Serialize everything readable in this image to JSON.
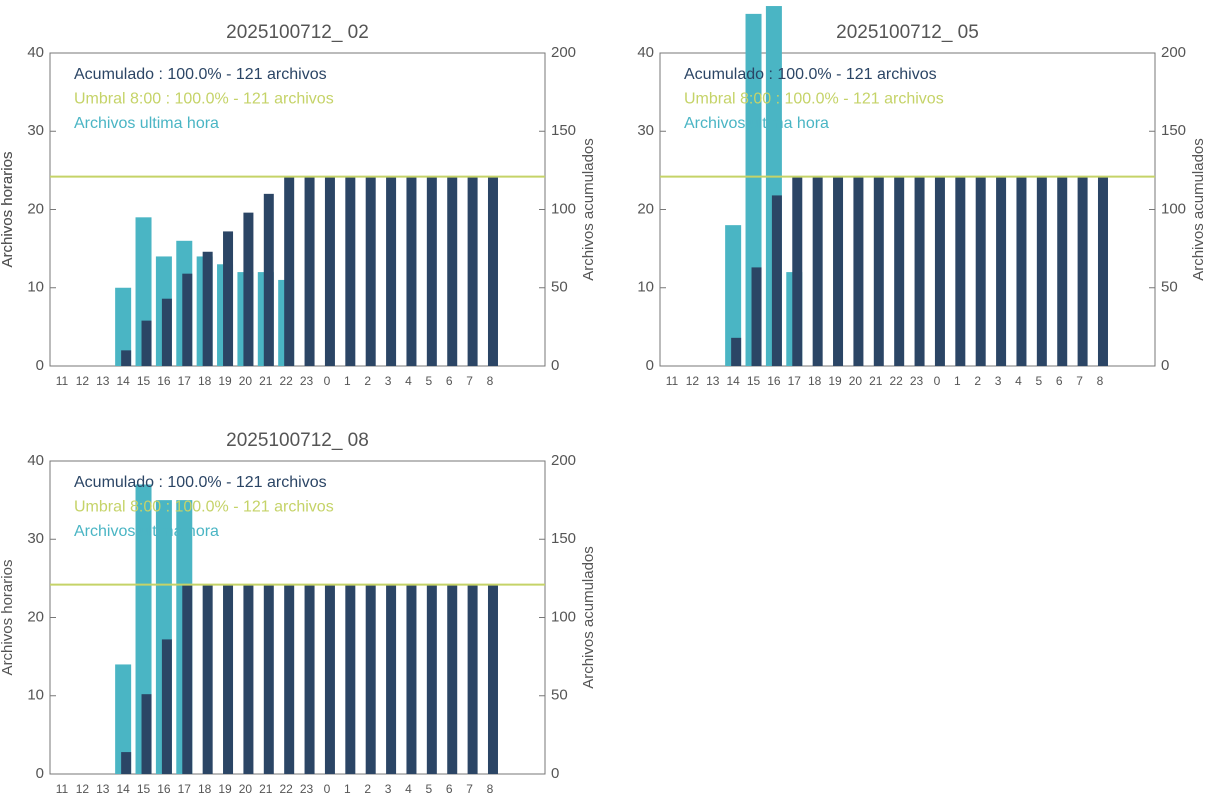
{
  "chart_data": [
    {
      "type": "bar",
      "title": "2025100712_ 02",
      "ylabel": "Archivos horarios",
      "y2label": "Archivos acumulados",
      "categories": [
        "11",
        "12",
        "13",
        "14",
        "15",
        "16",
        "17",
        "18",
        "19",
        "20",
        "21",
        "22",
        "23",
        "0",
        "1",
        "2",
        "3",
        "4",
        "5",
        "6",
        "7",
        "8"
      ],
      "series": [
        {
          "name": "Archivos ultima hora",
          "color": "#4ab5c4",
          "values": [
            0,
            0,
            0,
            10,
            19,
            14,
            16,
            14,
            13,
            12,
            12,
            11,
            0,
            0,
            0,
            0,
            0,
            0,
            0,
            0,
            0,
            0
          ]
        },
        {
          "name": "Acumulado : 100.0% - 121 archivos",
          "color": "#2b4565",
          "axis": "y2",
          "values": [
            0,
            0,
            0,
            10,
            29,
            43,
            59,
            73,
            86,
            98,
            110,
            121,
            121,
            121,
            121,
            121,
            121,
            121,
            121,
            121,
            121,
            121
          ]
        }
      ],
      "threshold": {
        "name": "Umbral 8:00 : 100.0% - 121 archivos",
        "value": 121,
        "axis": "y2",
        "color": "#c5d368"
      },
      "ylim": [
        0,
        40
      ],
      "yticks": [
        0,
        10,
        20,
        30,
        40
      ],
      "y2lim": [
        0,
        200
      ],
      "y2ticks": [
        0,
        50,
        100,
        150,
        200
      ]
    },
    {
      "type": "bar",
      "title": "2025100712_ 05",
      "ylabel": "Archivos horarios",
      "y2label": "Archivos acumulados",
      "categories": [
        "11",
        "12",
        "13",
        "14",
        "15",
        "16",
        "17",
        "18",
        "19",
        "20",
        "21",
        "22",
        "23",
        "0",
        "1",
        "2",
        "3",
        "4",
        "5",
        "6",
        "7",
        "8"
      ],
      "series": [
        {
          "name": "Archivos ultima hora",
          "color": "#4ab5c4",
          "values": [
            0,
            0,
            0,
            18,
            45,
            46,
            12,
            0,
            0,
            0,
            0,
            0,
            0,
            0,
            0,
            0,
            0,
            0,
            0,
            0,
            0,
            0
          ]
        },
        {
          "name": "Acumulado : 100.0% - 121 archivos",
          "color": "#2b4565",
          "axis": "y2",
          "values": [
            0,
            0,
            0,
            18,
            63,
            109,
            121,
            121,
            121,
            121,
            121,
            121,
            121,
            121,
            121,
            121,
            121,
            121,
            121,
            121,
            121,
            121
          ]
        }
      ],
      "threshold": {
        "name": "Umbral 8:00 : 100.0% - 121 archivos",
        "value": 121,
        "axis": "y2",
        "color": "#c5d368"
      },
      "ylim": [
        0,
        40
      ],
      "yticks": [
        0,
        10,
        20,
        30,
        40
      ],
      "y2lim": [
        0,
        200
      ],
      "y2ticks": [
        0,
        50,
        100,
        150,
        200
      ]
    },
    {
      "type": "bar",
      "title": "2025100712_ 08",
      "ylabel": "Archivos horarios",
      "y2label": "Archivos acumulados",
      "categories": [
        "11",
        "12",
        "13",
        "14",
        "15",
        "16",
        "17",
        "18",
        "19",
        "20",
        "21",
        "22",
        "23",
        "0",
        "1",
        "2",
        "3",
        "4",
        "5",
        "6",
        "7",
        "8"
      ],
      "series": [
        {
          "name": "Archivos ultima hora",
          "color": "#4ab5c4",
          "values": [
            0,
            0,
            0,
            14,
            37,
            35,
            35,
            0,
            0,
            0,
            0,
            0,
            0,
            0,
            0,
            0,
            0,
            0,
            0,
            0,
            0,
            0
          ]
        },
        {
          "name": "Acumulado : 100.0% - 121 archivos",
          "color": "#2b4565",
          "axis": "y2",
          "values": [
            0,
            0,
            0,
            14,
            51,
            86,
            121,
            121,
            121,
            121,
            121,
            121,
            121,
            121,
            121,
            121,
            121,
            121,
            121,
            121,
            121,
            121
          ]
        }
      ],
      "threshold": {
        "name": "Umbral 8:00 : 100.0% - 121 archivos",
        "value": 121,
        "axis": "y2",
        "color": "#c5d368"
      },
      "ylim": [
        0,
        40
      ],
      "yticks": [
        0,
        10,
        20,
        30,
        40
      ],
      "y2lim": [
        0,
        200
      ],
      "y2ticks": [
        0,
        50,
        100,
        150,
        200
      ]
    }
  ]
}
